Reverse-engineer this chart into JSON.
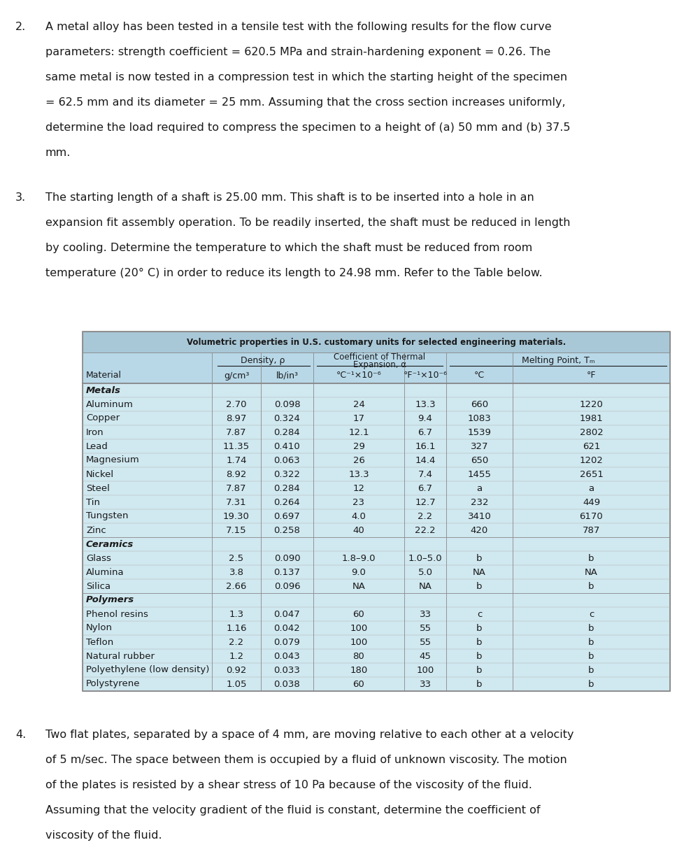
{
  "para2_lines": [
    "A metal alloy has been tested in a tensile test with the following results for the flow curve",
    "parameters: strength coefficient = 620.5 MPa and strain-hardening exponent = 0.26. The",
    "same metal is now tested in a compression test in which the starting height of the specimen",
    "= 62.5 mm and its diameter = 25 mm. Assuming that the cross section increases uniformly,",
    "determine the load required to compress the specimen to a height of (a) 50 mm and (b) 37.5",
    "mm."
  ],
  "para3_lines": [
    "The starting length of a shaft is 25.00 mm. This shaft is to be inserted into a hole in an",
    "expansion fit assembly operation. To be readily inserted, the shaft must be reduced in length",
    "by cooling. Determine the temperature to which the shaft must be reduced from room",
    "temperature (20° C) in order to reduce its length to 24.98 mm. Refer to the Table below."
  ],
  "para4_lines": [
    "Two flat plates, separated by a space of 4 mm, are moving relative to each other at a velocity",
    "of 5 m/sec. The space between them is occupied by a fluid of unknown viscosity. The motion",
    "of the plates is resisted by a shear stress of 10 Pa because of the viscosity of the fluid.",
    "Assuming that the velocity gradient of the fluid is constant, determine the coefficient of",
    "viscosity of the fluid."
  ],
  "table_title": "Volumetric properties in U.S. customary units for selected engineering materials.",
  "table_bg_title": "#a8c8d8",
  "table_bg_header": "#b8d8e8",
  "table_bg_body": "#d0e8f0",
  "table_border": "#888888",
  "table_data": [
    [
      "Metals",
      "",
      "",
      "",
      "",
      "",
      ""
    ],
    [
      "Aluminum",
      "2.70",
      "0.098",
      "24",
      "13.3",
      "660",
      "1220"
    ],
    [
      "Copper",
      "8.97",
      "0.324",
      "17",
      "9.4",
      "1083",
      "1981"
    ],
    [
      "Iron",
      "7.87",
      "0.284",
      "12.1",
      "6.7",
      "1539",
      "2802"
    ],
    [
      "Lead",
      "11.35",
      "0.410",
      "29",
      "16.1",
      "327",
      "621"
    ],
    [
      "Magnesium",
      "1.74",
      "0.063",
      "26",
      "14.4",
      "650",
      "1202"
    ],
    [
      "Nickel",
      "8.92",
      "0.322",
      "13.3",
      "7.4",
      "1455",
      "2651"
    ],
    [
      "Steel",
      "7.87",
      "0.284",
      "12",
      "6.7",
      "a",
      "a"
    ],
    [
      "Tin",
      "7.31",
      "0.264",
      "23",
      "12.7",
      "232",
      "449"
    ],
    [
      "Tungsten",
      "19.30",
      "0.697",
      "4.0",
      "2.2",
      "3410",
      "6170"
    ],
    [
      "Zinc",
      "7.15",
      "0.258",
      "40",
      "22.2",
      "420",
      "787"
    ],
    [
      "Ceramics",
      "",
      "",
      "",
      "",
      "",
      ""
    ],
    [
      "Glass",
      "2.5",
      "0.090",
      "1.8–9.0",
      "1.0–5.0",
      "b",
      "b"
    ],
    [
      "Alumina",
      "3.8",
      "0.137",
      "9.0",
      "5.0",
      "NA",
      "NA"
    ],
    [
      "Silica",
      "2.66",
      "0.096",
      "NA",
      "NA",
      "b",
      "b"
    ],
    [
      "Polymers",
      "",
      "",
      "",
      "",
      "",
      ""
    ],
    [
      "Phenol resins",
      "1.3",
      "0.047",
      "60",
      "33",
      "c",
      "c"
    ],
    [
      "Nylon",
      "1.16",
      "0.042",
      "100",
      "55",
      "b",
      "b"
    ],
    [
      "Teflon",
      "2.2",
      "0.079",
      "100",
      "55",
      "b",
      "b"
    ],
    [
      "Natural rubber",
      "1.2",
      "0.043",
      "80",
      "45",
      "b",
      "b"
    ],
    [
      "Polyethylene (low density)",
      "0.92",
      "0.033",
      "180",
      "100",
      "b",
      "b"
    ],
    [
      "Polystyrene",
      "1.05",
      "0.038",
      "60",
      "33",
      "b",
      "b"
    ]
  ],
  "bg_color": "#ffffff",
  "text_color": "#1a1a1a",
  "fs_body": 11.5,
  "fs_table_data": 9.5,
  "fs_table_hdr": 9.0,
  "fs_title": 8.5
}
